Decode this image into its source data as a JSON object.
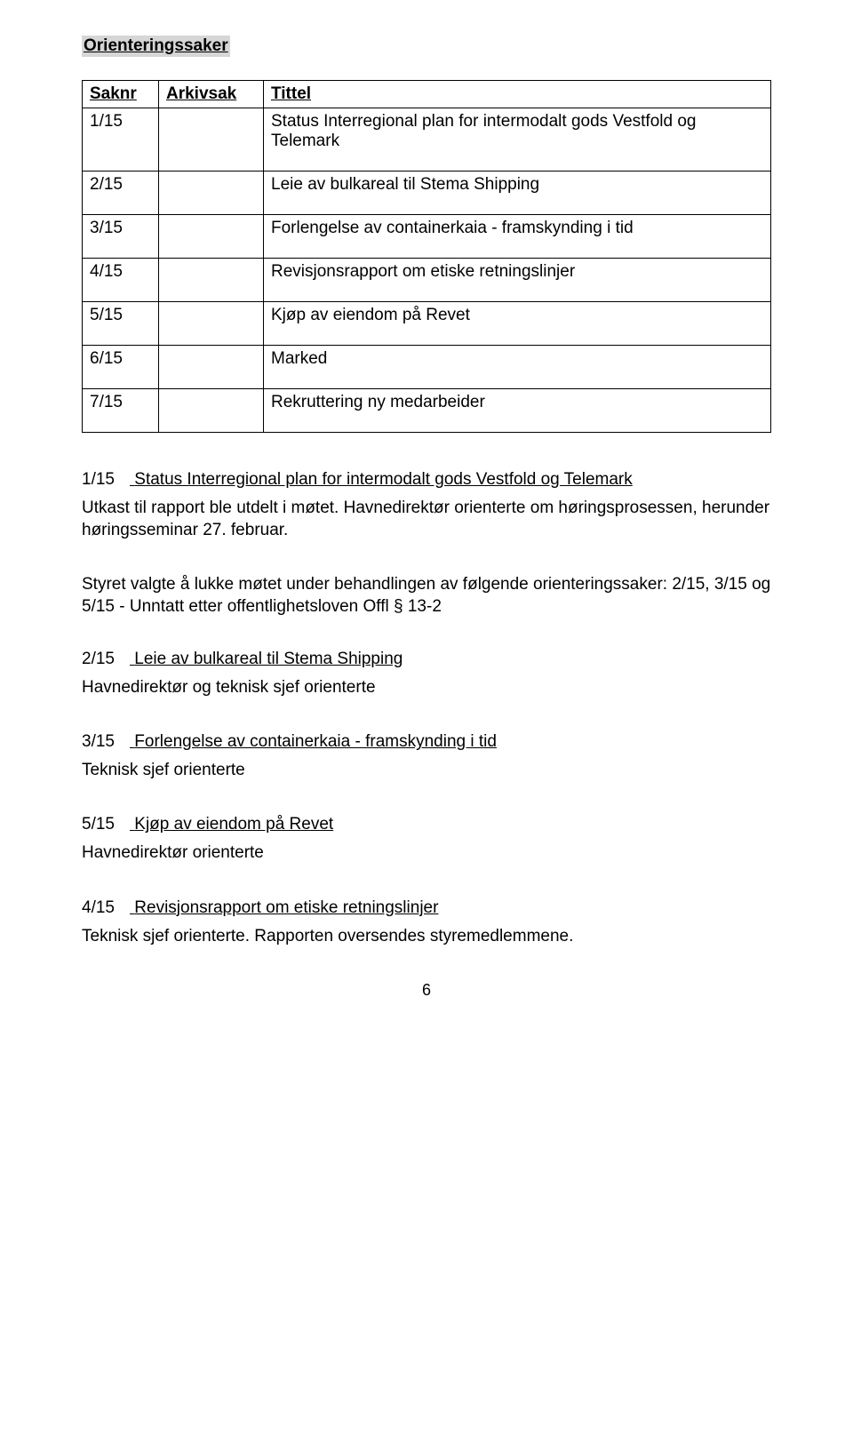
{
  "section_title": "Orienteringssaker",
  "table": {
    "headers": {
      "saknr": "Saknr",
      "arkivsak": "Arkivsak",
      "tittel": "Tittel"
    },
    "rows": [
      {
        "saknr": "1/15",
        "arkivsak": "",
        "tittel": "Status Interregional plan for intermodalt gods Vestfold og Telemark"
      },
      {
        "saknr": "2/15",
        "arkivsak": "",
        "tittel": "Leie av bulkareal til Stema Shipping"
      },
      {
        "saknr": "3/15",
        "arkivsak": "",
        "tittel": "Forlengelse av containerkaia - framskynding i tid"
      },
      {
        "saknr": "4/15",
        "arkivsak": "",
        "tittel": "Revisjonsrapport om etiske retningslinjer"
      },
      {
        "saknr": "5/15",
        "arkivsak": "",
        "tittel": "Kjøp av eiendom på Revet"
      },
      {
        "saknr": "6/15",
        "arkivsak": "",
        "tittel": "Marked"
      },
      {
        "saknr": "7/15",
        "arkivsak": "",
        "tittel": "Rekruttering ny medarbeider"
      }
    ]
  },
  "items": [
    {
      "num": "1/15",
      "title": "Status Interregional plan for intermodalt gods Vestfold og Telemark",
      "body": "Utkast til rapport ble utdelt i møtet. Havnedirektør orienterte om høringsprosessen, herunder høringsseminar 27. februar."
    }
  ],
  "lock_notice": "Styret valgte å lukke møtet under behandlingen av følgende orienteringssaker: 2/15, 3/15 og 5/15 - Unntatt etter offentlighetsloven Offl § 13-2",
  "items2": [
    {
      "num": "2/15",
      "title": "Leie av bulkareal til Stema Shipping",
      "body": "Havnedirektør og teknisk sjef orienterte"
    },
    {
      "num": "3/15",
      "title": "Forlengelse av containerkaia - framskynding i tid",
      "body": "Teknisk sjef orienterte"
    },
    {
      "num": "5/15",
      "title": "Kjøp av eiendom på Revet",
      "body": "Havnedirektør orienterte"
    },
    {
      "num": "4/15",
      "title": "Revisjonsrapport om etiske retningslinjer",
      "body": "Teknisk sjef orienterte. Rapporten oversendes styremedlemmene."
    }
  ],
  "page_number": "6"
}
